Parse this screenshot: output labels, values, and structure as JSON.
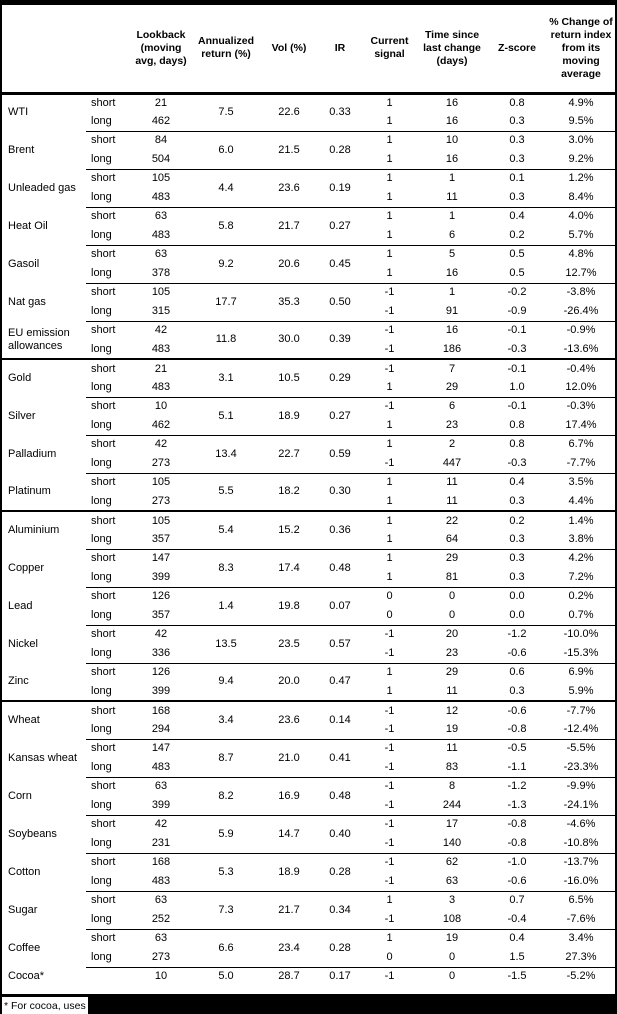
{
  "table": {
    "headers": [
      "",
      "",
      "Lookback\n(moving\navg, days)",
      "Annualized\nreturn (%)",
      "Vol (%)",
      "IR",
      "Current\nsignal",
      "Time since\nlast change\n(days)",
      "Z-score",
      "% Change of\nreturn index\nfrom its\nmoving\naverage"
    ],
    "commodities": [
      {
        "name": "WTI",
        "group_start": false,
        "annualized": "7.5",
        "vol": "22.6",
        "ir": "0.33",
        "rows": [
          {
            "leg": "short",
            "lookback": "21",
            "signal": "1",
            "time": "16",
            "z": "0.8",
            "pct": "4.9%"
          },
          {
            "leg": "long",
            "lookback": "462",
            "signal": "1",
            "time": "16",
            "z": "0.3",
            "pct": "9.5%"
          }
        ]
      },
      {
        "name": "Brent",
        "group_start": false,
        "annualized": "6.0",
        "vol": "21.5",
        "ir": "0.28",
        "rows": [
          {
            "leg": "short",
            "lookback": "84",
            "signal": "1",
            "time": "10",
            "z": "0.3",
            "pct": "3.0%"
          },
          {
            "leg": "long",
            "lookback": "504",
            "signal": "1",
            "time": "16",
            "z": "0.3",
            "pct": "9.2%"
          }
        ]
      },
      {
        "name": "Unleaded gas",
        "group_start": false,
        "annualized": "4.4",
        "vol": "23.6",
        "ir": "0.19",
        "rows": [
          {
            "leg": "short",
            "lookback": "105",
            "signal": "1",
            "time": "1",
            "z": "0.1",
            "pct": "1.2%"
          },
          {
            "leg": "long",
            "lookback": "483",
            "signal": "1",
            "time": "11",
            "z": "0.3",
            "pct": "8.4%"
          }
        ]
      },
      {
        "name": "Heat Oil",
        "group_start": false,
        "annualized": "5.8",
        "vol": "21.7",
        "ir": "0.27",
        "rows": [
          {
            "leg": "short",
            "lookback": "63",
            "signal": "1",
            "time": "1",
            "z": "0.4",
            "pct": "4.0%"
          },
          {
            "leg": "long",
            "lookback": "483",
            "signal": "1",
            "time": "6",
            "z": "0.2",
            "pct": "5.7%"
          }
        ]
      },
      {
        "name": "Gasoil",
        "group_start": false,
        "annualized": "9.2",
        "vol": "20.6",
        "ir": "0.45",
        "rows": [
          {
            "leg": "short",
            "lookback": "63",
            "signal": "1",
            "time": "5",
            "z": "0.5",
            "pct": "4.8%"
          },
          {
            "leg": "long",
            "lookback": "378",
            "signal": "1",
            "time": "16",
            "z": "0.5",
            "pct": "12.7%"
          }
        ]
      },
      {
        "name": "Nat gas",
        "group_start": false,
        "annualized": "17.7",
        "vol": "35.3",
        "ir": "0.50",
        "rows": [
          {
            "leg": "short",
            "lookback": "105",
            "signal": "-1",
            "time": "1",
            "z": "-0.2",
            "pct": "-3.8%"
          },
          {
            "leg": "long",
            "lookback": "315",
            "signal": "-1",
            "time": "91",
            "z": "-0.9",
            "pct": "-26.4%"
          }
        ]
      },
      {
        "name": "EU emission allowances",
        "group_start": false,
        "annualized": "11.8",
        "vol": "30.0",
        "ir": "0.39",
        "rows": [
          {
            "leg": "short",
            "lookback": "42",
            "signal": "-1",
            "time": "16",
            "z": "-0.1",
            "pct": "-0.9%"
          },
          {
            "leg": "long",
            "lookback": "483",
            "signal": "-1",
            "time": "186",
            "z": "-0.3",
            "pct": "-13.6%"
          }
        ]
      },
      {
        "name": "Gold",
        "group_start": true,
        "annualized": "3.1",
        "vol": "10.5",
        "ir": "0.29",
        "rows": [
          {
            "leg": "short",
            "lookback": "21",
            "signal": "-1",
            "time": "7",
            "z": "-0.1",
            "pct": "-0.4%"
          },
          {
            "leg": "long",
            "lookback": "483",
            "signal": "1",
            "time": "29",
            "z": "1.0",
            "pct": "12.0%"
          }
        ]
      },
      {
        "name": "Silver",
        "group_start": false,
        "annualized": "5.1",
        "vol": "18.9",
        "ir": "0.27",
        "rows": [
          {
            "leg": "short",
            "lookback": "10",
            "signal": "-1",
            "time": "6",
            "z": "-0.1",
            "pct": "-0.3%"
          },
          {
            "leg": "long",
            "lookback": "462",
            "signal": "1",
            "time": "23",
            "z": "0.8",
            "pct": "17.4%"
          }
        ]
      },
      {
        "name": "Palladium",
        "group_start": false,
        "annualized": "13.4",
        "vol": "22.7",
        "ir": "0.59",
        "rows": [
          {
            "leg": "short",
            "lookback": "42",
            "signal": "1",
            "time": "2",
            "z": "0.8",
            "pct": "6.7%"
          },
          {
            "leg": "long",
            "lookback": "273",
            "signal": "-1",
            "time": "447",
            "z": "-0.3",
            "pct": "-7.7%"
          }
        ]
      },
      {
        "name": "Platinum",
        "group_start": false,
        "annualized": "5.5",
        "vol": "18.2",
        "ir": "0.30",
        "rows": [
          {
            "leg": "short",
            "lookback": "105",
            "signal": "1",
            "time": "11",
            "z": "0.4",
            "pct": "3.5%"
          },
          {
            "leg": "long",
            "lookback": "273",
            "signal": "1",
            "time": "11",
            "z": "0.3",
            "pct": "4.4%"
          }
        ]
      },
      {
        "name": "Aluminium",
        "group_start": true,
        "annualized": "5.4",
        "vol": "15.2",
        "ir": "0.36",
        "rows": [
          {
            "leg": "short",
            "lookback": "105",
            "signal": "1",
            "time": "22",
            "z": "0.2",
            "pct": "1.4%"
          },
          {
            "leg": "long",
            "lookback": "357",
            "signal": "1",
            "time": "64",
            "z": "0.3",
            "pct": "3.8%"
          }
        ]
      },
      {
        "name": "Copper",
        "group_start": false,
        "annualized": "8.3",
        "vol": "17.4",
        "ir": "0.48",
        "rows": [
          {
            "leg": "short",
            "lookback": "147",
            "signal": "1",
            "time": "29",
            "z": "0.3",
            "pct": "4.2%"
          },
          {
            "leg": "long",
            "lookback": "399",
            "signal": "1",
            "time": "81",
            "z": "0.3",
            "pct": "7.2%"
          }
        ]
      },
      {
        "name": "Lead",
        "group_start": false,
        "annualized": "1.4",
        "vol": "19.8",
        "ir": "0.07",
        "rows": [
          {
            "leg": "short",
            "lookback": "126",
            "signal": "0",
            "time": "0",
            "z": "0.0",
            "pct": "0.2%"
          },
          {
            "leg": "long",
            "lookback": "357",
            "signal": "0",
            "time": "0",
            "z": "0.0",
            "pct": "0.7%"
          }
        ]
      },
      {
        "name": "Nickel",
        "group_start": false,
        "annualized": "13.5",
        "vol": "23.5",
        "ir": "0.57",
        "rows": [
          {
            "leg": "short",
            "lookback": "42",
            "signal": "-1",
            "time": "20",
            "z": "-1.2",
            "pct": "-10.0%"
          },
          {
            "leg": "long",
            "lookback": "336",
            "signal": "-1",
            "time": "23",
            "z": "-0.6",
            "pct": "-15.3%"
          }
        ]
      },
      {
        "name": "Zinc",
        "group_start": false,
        "annualized": "9.4",
        "vol": "20.0",
        "ir": "0.47",
        "rows": [
          {
            "leg": "short",
            "lookback": "126",
            "signal": "1",
            "time": "29",
            "z": "0.6",
            "pct": "6.9%"
          },
          {
            "leg": "long",
            "lookback": "399",
            "signal": "1",
            "time": "11",
            "z": "0.3",
            "pct": "5.9%"
          }
        ]
      },
      {
        "name": "Wheat",
        "group_start": true,
        "annualized": "3.4",
        "vol": "23.6",
        "ir": "0.14",
        "rows": [
          {
            "leg": "short",
            "lookback": "168",
            "signal": "-1",
            "time": "12",
            "z": "-0.6",
            "pct": "-7.7%"
          },
          {
            "leg": "long",
            "lookback": "294",
            "signal": "-1",
            "time": "19",
            "z": "-0.8",
            "pct": "-12.4%"
          }
        ]
      },
      {
        "name": "Kansas wheat",
        "group_start": false,
        "annualized": "8.7",
        "vol": "21.0",
        "ir": "0.41",
        "rows": [
          {
            "leg": "short",
            "lookback": "147",
            "signal": "-1",
            "time": "11",
            "z": "-0.5",
            "pct": "-5.5%"
          },
          {
            "leg": "long",
            "lookback": "483",
            "signal": "-1",
            "time": "83",
            "z": "-1.1",
            "pct": "-23.3%"
          }
        ]
      },
      {
        "name": "Corn",
        "group_start": false,
        "annualized": "8.2",
        "vol": "16.9",
        "ir": "0.48",
        "rows": [
          {
            "leg": "short",
            "lookback": "63",
            "signal": "-1",
            "time": "8",
            "z": "-1.2",
            "pct": "-9.9%"
          },
          {
            "leg": "long",
            "lookback": "399",
            "signal": "-1",
            "time": "244",
            "z": "-1.3",
            "pct": "-24.1%"
          }
        ]
      },
      {
        "name": "Soybeans",
        "group_start": false,
        "annualized": "5.9",
        "vol": "14.7",
        "ir": "0.40",
        "rows": [
          {
            "leg": "short",
            "lookback": "42",
            "signal": "-1",
            "time": "17",
            "z": "-0.8",
            "pct": "-4.6%"
          },
          {
            "leg": "long",
            "lookback": "231",
            "signal": "-1",
            "time": "140",
            "z": "-0.8",
            "pct": "-10.8%"
          }
        ]
      },
      {
        "name": "Cotton",
        "group_start": false,
        "annualized": "5.3",
        "vol": "18.9",
        "ir": "0.28",
        "rows": [
          {
            "leg": "short",
            "lookback": "168",
            "signal": "-1",
            "time": "62",
            "z": "-1.0",
            "pct": "-13.7%"
          },
          {
            "leg": "long",
            "lookback": "483",
            "signal": "-1",
            "time": "63",
            "z": "-0.6",
            "pct": "-16.0%"
          }
        ]
      },
      {
        "name": "Sugar",
        "group_start": false,
        "annualized": "7.3",
        "vol": "21.7",
        "ir": "0.34",
        "rows": [
          {
            "leg": "short",
            "lookback": "63",
            "signal": "1",
            "time": "3",
            "z": "0.7",
            "pct": "6.5%"
          },
          {
            "leg": "long",
            "lookback": "252",
            "signal": "-1",
            "time": "108",
            "z": "-0.4",
            "pct": "-7.6%"
          }
        ]
      },
      {
        "name": "Coffee",
        "group_start": false,
        "annualized": "6.6",
        "vol": "23.4",
        "ir": "0.28",
        "rows": [
          {
            "leg": "short",
            "lookback": "63",
            "signal": "1",
            "time": "19",
            "z": "0.4",
            "pct": "3.4%"
          },
          {
            "leg": "long",
            "lookback": "273",
            "signal": "0",
            "time": "0",
            "z": "1.5",
            "pct": "27.3%"
          }
        ]
      },
      {
        "name": "Cocoa*",
        "group_start": false,
        "annualized": "5.0",
        "vol": "28.7",
        "ir": "0.17",
        "rows": [
          {
            "leg": "",
            "lookback": "10",
            "signal": "-1",
            "time": "0",
            "z": "-1.5",
            "pct": "-5.2%"
          }
        ]
      }
    ]
  },
  "footnote": {
    "visible_text": "* For cocoa, uses"
  },
  "colors": {
    "text": "#000000",
    "background": "#ffffff",
    "border": "#000000",
    "redaction": "#000000"
  }
}
